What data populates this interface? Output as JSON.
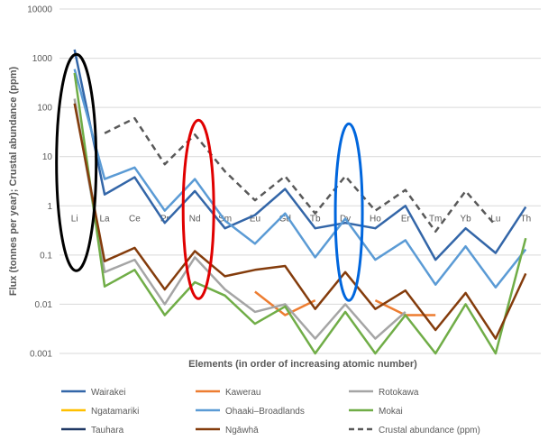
{
  "chart_data": {
    "type": "line",
    "xlabel": "Elements (in order of increasing atomic number)",
    "ylabel": "Flux (tonnes per year); Crustal abundance (ppm)",
    "y_scale": "log",
    "ylim": [
      0.001,
      10000
    ],
    "y_ticks": [
      "0.001",
      "0.01",
      "0.1",
      "1",
      "10",
      "100",
      "1000",
      "10000"
    ],
    "categories": [
      "Li",
      "La",
      "Ce",
      "Pr",
      "Nd",
      "Sm",
      "Eu",
      "Gd",
      "Tb",
      "Dy",
      "Ho",
      "Er",
      "Tm",
      "Yb",
      "Lu",
      "Th"
    ],
    "grid": "horizontal",
    "legend_position": "bottom",
    "series": [
      {
        "name": "Wairakei",
        "color": "#3366a8",
        "dash": false,
        "values": [
          1500,
          1.7,
          3.8,
          0.45,
          2.0,
          0.35,
          0.65,
          2.2,
          0.35,
          0.45,
          0.35,
          1.0,
          0.08,
          0.35,
          0.11,
          0.95
        ]
      },
      {
        "name": "Kawerau",
        "color": "#ed7d31",
        "dash": false,
        "values": [
          null,
          null,
          null,
          null,
          null,
          null,
          0.018,
          0.006,
          0.012,
          null,
          0.012,
          0.006,
          0.006,
          null,
          null,
          null
        ]
      },
      {
        "name": "Rotokawa",
        "color": "#a5a5a5",
        "dash": false,
        "values": [
          150,
          0.045,
          0.08,
          0.01,
          0.09,
          0.02,
          0.007,
          0.01,
          0.002,
          0.01,
          0.002,
          0.007,
          null,
          null,
          null,
          null
        ]
      },
      {
        "name": "Ngatamariki",
        "color": "#ffc000",
        "dash": false,
        "values": [
          null,
          null,
          null,
          null,
          null,
          null,
          null,
          null,
          null,
          null,
          null,
          null,
          null,
          null,
          null,
          null
        ]
      },
      {
        "name": "Ohaaki–Broadlands",
        "color": "#5b9bd5",
        "dash": false,
        "values": [
          600,
          3.5,
          6.0,
          0.8,
          3.5,
          0.5,
          0.17,
          0.7,
          0.09,
          0.55,
          0.08,
          0.2,
          0.025,
          0.15,
          0.022,
          0.13
        ]
      },
      {
        "name": "Mokai",
        "color": "#70ad47",
        "dash": false,
        "values": [
          500,
          0.023,
          0.05,
          0.006,
          0.028,
          0.015,
          0.004,
          0.009,
          0.001,
          0.007,
          0.001,
          0.006,
          0.001,
          0.01,
          0.001,
          0.22
        ]
      },
      {
        "name": "Tauhara",
        "color": "#1f3864",
        "dash": false,
        "values": [
          null,
          null,
          null,
          null,
          null,
          null,
          null,
          null,
          null,
          null,
          null,
          null,
          null,
          null,
          null,
          null
        ]
      },
      {
        "name": "Ngāwhā",
        "color": "#843c0c",
        "dash": false,
        "values": [
          120,
          0.075,
          0.14,
          0.02,
          0.12,
          0.037,
          0.05,
          0.06,
          0.008,
          0.045,
          0.008,
          0.019,
          0.003,
          0.017,
          0.002,
          0.042
        ]
      },
      {
        "name": "Crustal abundance (ppm)",
        "color": "#595959",
        "dash": true,
        "values": [
          null,
          30,
          60,
          7,
          28,
          5,
          1.3,
          4,
          0.7,
          4,
          0.8,
          2.1,
          0.3,
          2,
          0.4,
          null
        ]
      }
    ],
    "annotations": [
      {
        "shape": "ellipse",
        "color": "#000000",
        "around": "Li"
      },
      {
        "shape": "ellipse",
        "color": "#e00000",
        "around": "Nd"
      },
      {
        "shape": "ellipse",
        "color": "#0066dd",
        "around": "Dy"
      }
    ]
  }
}
